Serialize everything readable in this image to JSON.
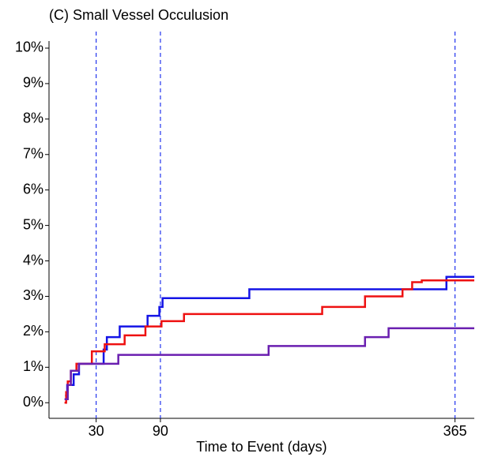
{
  "chart_data": {
    "type": "step",
    "title": "(C) Small Vessel Occulusion",
    "x_label": "Time to Event (days)",
    "xlim": [
      -14,
      383
    ],
    "ylim": [
      -0.44,
      10.2
    ],
    "xticks": [
      30,
      90,
      365
    ],
    "yticks": [
      {
        "value": 0,
        "label": "0%"
      },
      {
        "value": 1,
        "label": "1%"
      },
      {
        "value": 2,
        "label": "2%"
      },
      {
        "value": 3,
        "label": "3%"
      },
      {
        "value": 4,
        "label": "4%"
      },
      {
        "value": 5,
        "label": "5%"
      },
      {
        "value": 6,
        "label": "6%"
      },
      {
        "value": 7,
        "label": "7%"
      },
      {
        "value": 8,
        "label": "8%"
      },
      {
        "value": 9,
        "label": "9%"
      },
      {
        "value": 10,
        "label": "10%"
      }
    ],
    "vlines": [
      30,
      90,
      365
    ],
    "vline_color": "#2233ee",
    "series": [
      {
        "color": "#1414e6",
        "x": [
          1,
          3,
          9,
          14,
          37,
          40,
          52,
          78,
          89,
          92,
          173,
          357,
          383
        ],
        "values": [
          0.2,
          0.5,
          0.8,
          1.1,
          1.5,
          1.85,
          2.15,
          2.45,
          2.7,
          2.95,
          3.2,
          3.55,
          3.55
        ]
      },
      {
        "color": "#ee1111",
        "x": [
          0.5,
          2,
          3.5,
          6.4,
          11.6,
          26,
          38,
          56.6,
          76,
          91,
          112,
          241,
          281,
          316,
          325,
          334,
          383
        ],
        "values": [
          0,
          0.3,
          0.6,
          0.9,
          1.1,
          1.45,
          1.65,
          1.9,
          2.15,
          2.3,
          2.5,
          2.7,
          3.0,
          3.2,
          3.4,
          3.45,
          3.45
        ]
      },
      {
        "color": "#6a1fb0",
        "x": [
          0.5,
          3.5,
          6.4,
          13.8,
          50.7,
          191,
          281,
          303,
          383
        ],
        "values": [
          0.1,
          0.5,
          0.9,
          1.1,
          1.35,
          1.6,
          1.85,
          2.1,
          2.1
        ]
      }
    ]
  }
}
